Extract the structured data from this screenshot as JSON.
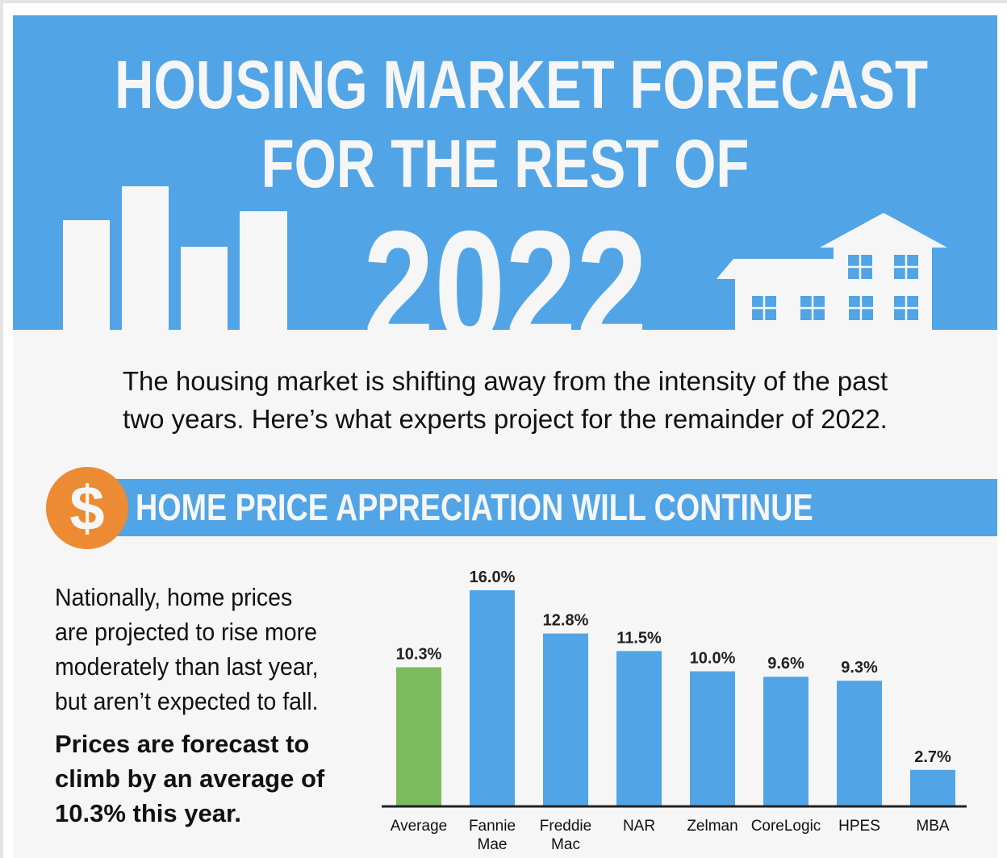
{
  "header": {
    "title_line1": "HOUSING MARKET FORECAST",
    "title_line2": "FOR THE REST OF",
    "title_year": "2022"
  },
  "intro": {
    "line1": "The housing market is shifting away from the intensity of the past",
    "line2": "two years. Here’s what experts project for the remainder of 2022."
  },
  "section": {
    "icon": "dollar-icon",
    "icon_glyph": "$",
    "title": "HOME PRICE APPRECIATION WILL CONTINUE"
  },
  "summary": {
    "lines": [
      "Nationally, home prices",
      "are projected to rise more",
      "moderately than last year,",
      "but aren’t expected to fall."
    ],
    "bold_lines": [
      "Prices are forecast to",
      "climb by an average of",
      "10.3% this year."
    ]
  },
  "colors": {
    "brand_blue": "#51a5e6",
    "accent_orange": "#ec8b33",
    "average_green": "#7dbb5f",
    "background": "#f6f6f6"
  },
  "chart_data": {
    "type": "bar",
    "categories": [
      [
        "Average"
      ],
      [
        "Fannie",
        "Mae"
      ],
      [
        "Freddie",
        "Mac"
      ],
      [
        "NAR"
      ],
      [
        "Zelman"
      ],
      [
        "CoreLogic"
      ],
      [
        "HPES"
      ],
      [
        "MBA"
      ]
    ],
    "values": [
      10.3,
      16.0,
      12.8,
      11.5,
      10.0,
      9.6,
      9.3,
      2.7
    ],
    "data_labels": [
      "10.3%",
      "16.0%",
      "12.8%",
      "11.5%",
      "10.0%",
      "9.6%",
      "9.3%",
      "2.7%"
    ],
    "bar_colors": [
      "#7dbb5f",
      "#51a5e6",
      "#51a5e6",
      "#51a5e6",
      "#51a5e6",
      "#51a5e6",
      "#51a5e6",
      "#51a5e6"
    ],
    "unit": "%",
    "ylim": [
      0,
      16
    ],
    "grid": false,
    "legend": "none"
  }
}
